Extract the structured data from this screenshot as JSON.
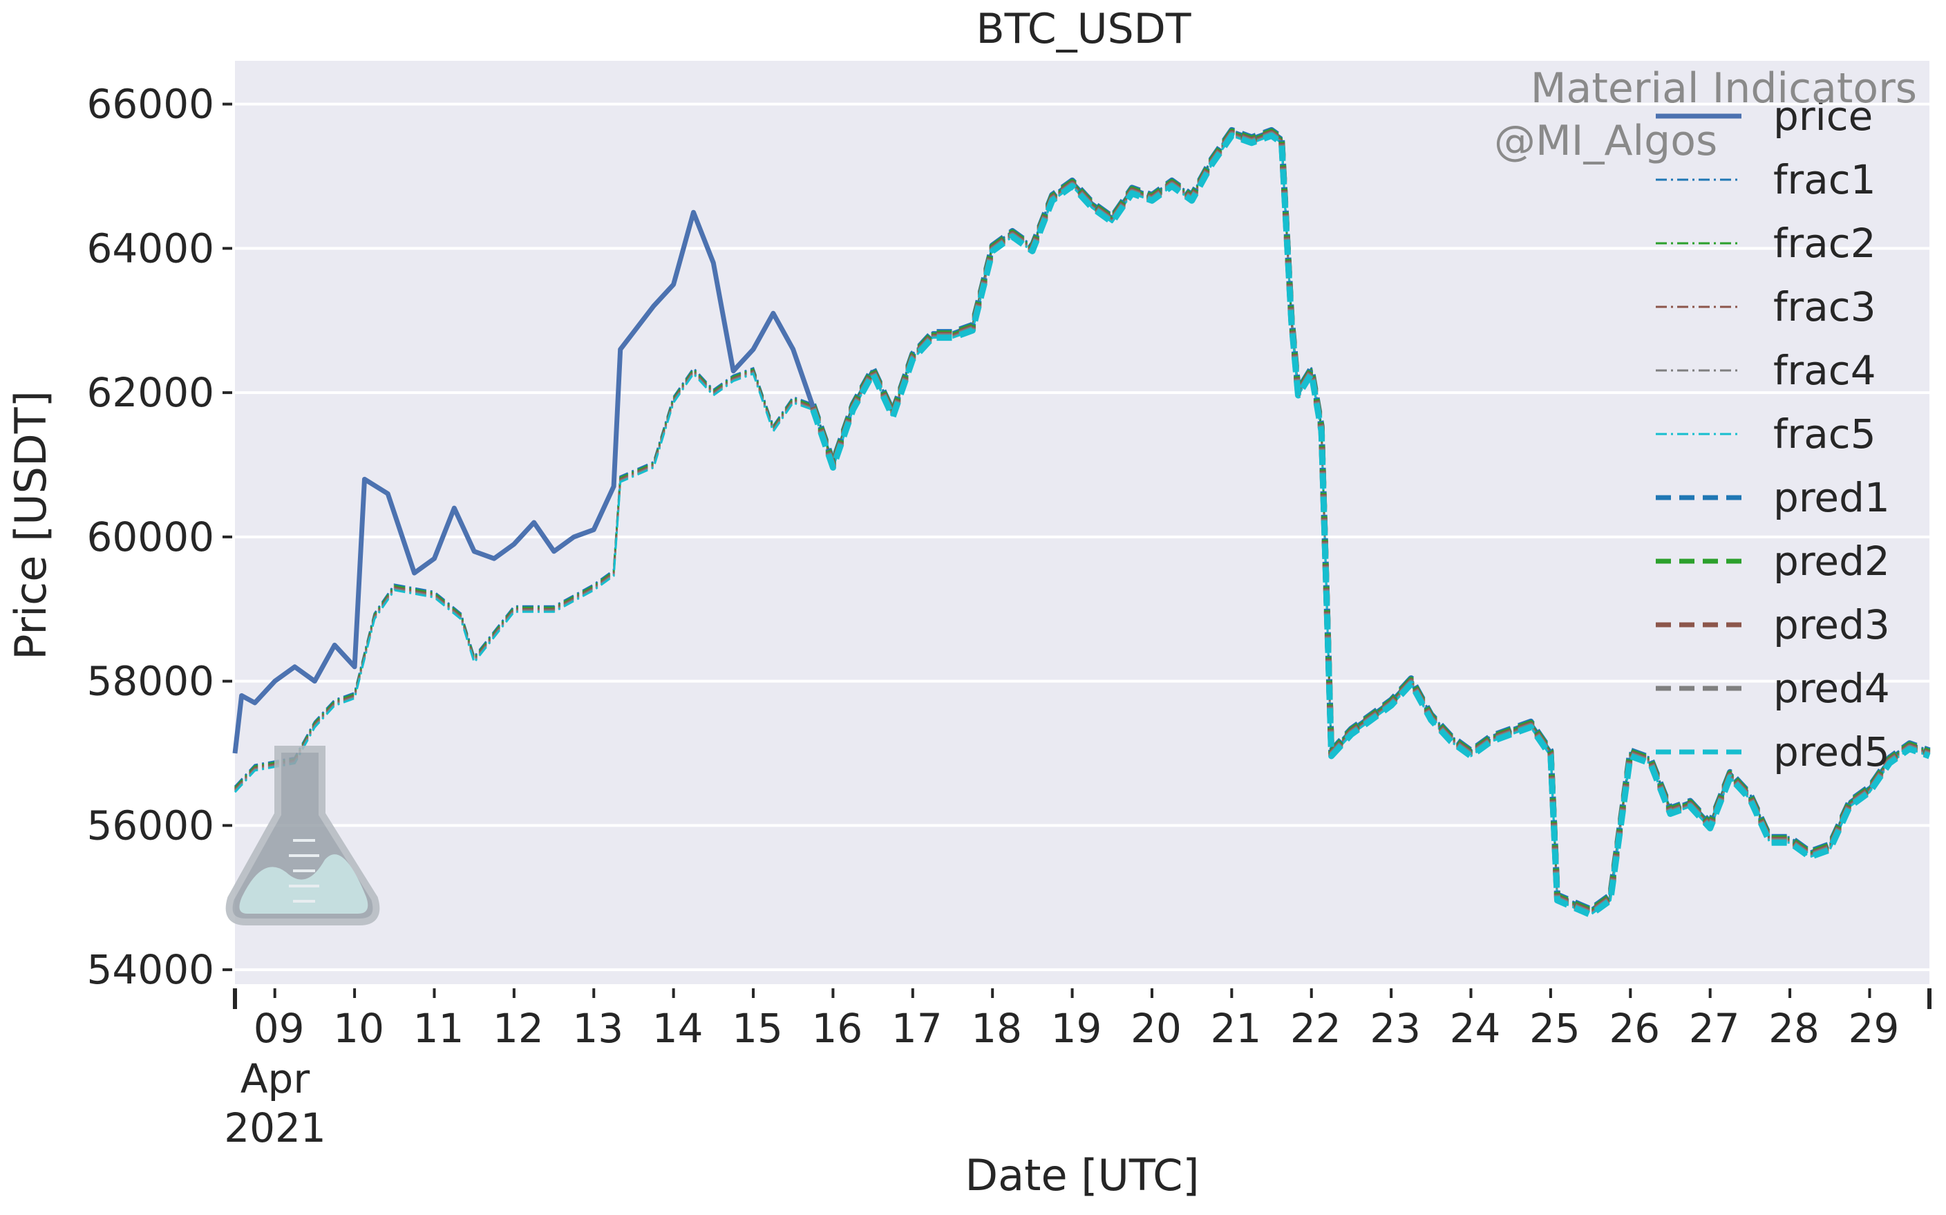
{
  "chart_data": {
    "type": "line",
    "title": "BTC_USDT",
    "xlabel": "Date [UTC]",
    "ylabel": "Price [USDT]",
    "ylim": [
      53800,
      66600
    ],
    "xlim": [
      "2021-04-08T12:00",
      "2021-04-29T18:00"
    ],
    "grid": true,
    "legend": "top-right",
    "y_ticks": [
      "54000",
      "56000",
      "58000",
      "60000",
      "62000",
      "64000",
      "66000"
    ],
    "y_tick_values": [
      54000,
      56000,
      58000,
      60000,
      62000,
      64000,
      66000
    ],
    "x_ticks": [
      "09",
      "10",
      "11",
      "12",
      "13",
      "14",
      "15",
      "16",
      "17",
      "18",
      "19",
      "20",
      "21",
      "22",
      "23",
      "24",
      "25",
      "26",
      "27",
      "28",
      "29"
    ],
    "x_tick_values": [
      "2021-04-09",
      "2021-04-10",
      "2021-04-11",
      "2021-04-12",
      "2021-04-13",
      "2021-04-14",
      "2021-04-15",
      "2021-04-16",
      "2021-04-17",
      "2021-04-18",
      "2021-04-19",
      "2021-04-20",
      "2021-04-21",
      "2021-04-22",
      "2021-04-23",
      "2021-04-24",
      "2021-04-25",
      "2021-04-26",
      "2021-04-27",
      "2021-04-28",
      "2021-04-29"
    ],
    "x_sublabel_month": "Apr",
    "x_sublabel_year": "2021",
    "price_points": [
      [
        "2021-04-08T12:00",
        57000
      ],
      [
        "2021-04-08T14:00",
        57800
      ],
      [
        "2021-04-08T18:00",
        57700
      ],
      [
        "2021-04-09T00:00",
        58000
      ],
      [
        "2021-04-09T06:00",
        58200
      ],
      [
        "2021-04-09T12:00",
        58000
      ],
      [
        "2021-04-09T18:00",
        58500
      ],
      [
        "2021-04-10T00:00",
        58200
      ],
      [
        "2021-04-10T03:00",
        60800
      ],
      [
        "2021-04-10T10:00",
        60600
      ],
      [
        "2021-04-10T18:00",
        59500
      ],
      [
        "2021-04-11T00:00",
        59700
      ],
      [
        "2021-04-11T06:00",
        60400
      ],
      [
        "2021-04-11T12:00",
        59800
      ],
      [
        "2021-04-11T18:00",
        59700
      ],
      [
        "2021-04-12T00:00",
        59900
      ],
      [
        "2021-04-12T06:00",
        60200
      ],
      [
        "2021-04-12T12:00",
        59800
      ],
      [
        "2021-04-12T18:00",
        60000
      ],
      [
        "2021-04-13T00:00",
        60100
      ],
      [
        "2021-04-13T06:00",
        60700
      ],
      [
        "2021-04-13T08:00",
        62600
      ],
      [
        "2021-04-13T18:00",
        63200
      ],
      [
        "2021-04-14T00:00",
        63500
      ],
      [
        "2021-04-14T06:00",
        64500
      ],
      [
        "2021-04-14T12:00",
        63800
      ],
      [
        "2021-04-14T18:00",
        62300
      ],
      [
        "2021-04-15T00:00",
        62600
      ],
      [
        "2021-04-15T06:00",
        63100
      ],
      [
        "2021-04-15T12:00",
        62600
      ],
      [
        "2021-04-15T18:00",
        61800
      ]
    ],
    "frac_points": [
      [
        "2021-04-08T12:00",
        56500
      ],
      [
        "2021-04-08T18:00",
        56800
      ],
      [
        "2021-04-09T06:00",
        56900
      ],
      [
        "2021-04-09T12:00",
        57400
      ],
      [
        "2021-04-09T18:00",
        57700
      ],
      [
        "2021-04-10T00:00",
        57800
      ],
      [
        "2021-04-10T06:00",
        58900
      ],
      [
        "2021-04-10T12:00",
        59300
      ],
      [
        "2021-04-11T00:00",
        59200
      ],
      [
        "2021-04-11T08:00",
        58900
      ],
      [
        "2021-04-11T12:00",
        58300
      ],
      [
        "2021-04-12T00:00",
        59000
      ],
      [
        "2021-04-12T12:00",
        59000
      ],
      [
        "2021-04-13T00:00",
        59300
      ],
      [
        "2021-04-13T06:00",
        59500
      ],
      [
        "2021-04-13T08:00",
        60800
      ],
      [
        "2021-04-13T18:00",
        61000
      ],
      [
        "2021-04-14T00:00",
        61900
      ],
      [
        "2021-04-14T06:00",
        62300
      ],
      [
        "2021-04-14T12:00",
        62000
      ],
      [
        "2021-04-14T18:00",
        62200
      ],
      [
        "2021-04-15T00:00",
        62300
      ],
      [
        "2021-04-15T06:00",
        61500
      ],
      [
        "2021-04-15T12:00",
        61900
      ],
      [
        "2021-04-15T18:00",
        61800
      ]
    ],
    "common_points": [
      [
        "2021-04-15T18:00",
        61800
      ],
      [
        "2021-04-16T00:00",
        61000
      ],
      [
        "2021-04-16T06:00",
        61800
      ],
      [
        "2021-04-16T12:00",
        62300
      ],
      [
        "2021-04-16T18:00",
        61700
      ],
      [
        "2021-04-17T00:00",
        62500
      ],
      [
        "2021-04-17T06:00",
        62800
      ],
      [
        "2021-04-17T12:00",
        62800
      ],
      [
        "2021-04-17T18:00",
        62900
      ],
      [
        "2021-04-18T00:00",
        64000
      ],
      [
        "2021-04-18T06:00",
        64200
      ],
      [
        "2021-04-18T12:00",
        64000
      ],
      [
        "2021-04-18T18:00",
        64700
      ],
      [
        "2021-04-19T00:00",
        64900
      ],
      [
        "2021-04-19T06:00",
        64600
      ],
      [
        "2021-04-19T12:00",
        64400
      ],
      [
        "2021-04-19T18:00",
        64800
      ],
      [
        "2021-04-20T00:00",
        64700
      ],
      [
        "2021-04-20T06:00",
        64900
      ],
      [
        "2021-04-20T12:00",
        64700
      ],
      [
        "2021-04-20T18:00",
        65200
      ],
      [
        "2021-04-21T00:00",
        65600
      ],
      [
        "2021-04-21T06:00",
        65500
      ],
      [
        "2021-04-21T12:00",
        65600
      ],
      [
        "2021-04-21T15:00",
        65500
      ],
      [
        "2021-04-21T18:00",
        63000
      ],
      [
        "2021-04-21T20:00",
        62000
      ],
      [
        "2021-04-22T00:00",
        62300
      ],
      [
        "2021-04-22T03:00",
        61500
      ],
      [
        "2021-04-22T06:00",
        57000
      ],
      [
        "2021-04-22T12:00",
        57300
      ],
      [
        "2021-04-22T18:00",
        57500
      ],
      [
        "2021-04-23T00:00",
        57700
      ],
      [
        "2021-04-23T06:00",
        58000
      ],
      [
        "2021-04-23T12:00",
        57500
      ],
      [
        "2021-04-23T18:00",
        57200
      ],
      [
        "2021-04-24T00:00",
        57000
      ],
      [
        "2021-04-24T06:00",
        57200
      ],
      [
        "2021-04-24T12:00",
        57300
      ],
      [
        "2021-04-24T18:00",
        57400
      ],
      [
        "2021-04-25T00:00",
        57000
      ],
      [
        "2021-04-25T02:00",
        55000
      ],
      [
        "2021-04-25T12:00",
        54800
      ],
      [
        "2021-04-25T18:00",
        55000
      ],
      [
        "2021-04-26T00:00",
        57000
      ],
      [
        "2021-04-26T06:00",
        56900
      ],
      [
        "2021-04-26T12:00",
        56200
      ],
      [
        "2021-04-26T18:00",
        56300
      ],
      [
        "2021-04-27T00:00",
        56000
      ],
      [
        "2021-04-27T06:00",
        56700
      ],
      [
        "2021-04-27T12:00",
        56400
      ],
      [
        "2021-04-27T18:00",
        55800
      ],
      [
        "2021-04-28T00:00",
        55800
      ],
      [
        "2021-04-28T06:00",
        55600
      ],
      [
        "2021-04-28T12:00",
        55700
      ],
      [
        "2021-04-28T18:00",
        56300
      ],
      [
        "2021-04-29T00:00",
        56500
      ],
      [
        "2021-04-29T06:00",
        56900
      ],
      [
        "2021-04-29T12:00",
        57100
      ],
      [
        "2021-04-29T18:00",
        57000
      ]
    ],
    "series": [
      {
        "name": "price",
        "color": "#4C72B0",
        "style": "solid"
      },
      {
        "name": "frac1",
        "color": "#1f77b4",
        "style": "dashdot"
      },
      {
        "name": "frac2",
        "color": "#2ca02c",
        "style": "dashdot"
      },
      {
        "name": "frac3",
        "color": "#8c564b",
        "style": "dashdot"
      },
      {
        "name": "frac4",
        "color": "#7f7f7f",
        "style": "dashdot"
      },
      {
        "name": "frac5",
        "color": "#17becf",
        "style": "dashdot"
      },
      {
        "name": "pred1",
        "color": "#1f77b4",
        "style": "dashed"
      },
      {
        "name": "pred2",
        "color": "#2ca02c",
        "style": "dashed"
      },
      {
        "name": "pred3",
        "color": "#8c564b",
        "style": "dashed"
      },
      {
        "name": "pred4",
        "color": "#7f7f7f",
        "style": "dashed"
      },
      {
        "name": "pred5",
        "color": "#17becf",
        "style": "dashed"
      }
    ]
  },
  "watermark": {
    "line1": "Material Indicators",
    "line2": "@MI_Algos",
    "logo": "flask-logo-icon"
  },
  "colors": {
    "plot_background": "#EAEAF2",
    "grid": "#FFFFFF",
    "text": "#262626"
  }
}
